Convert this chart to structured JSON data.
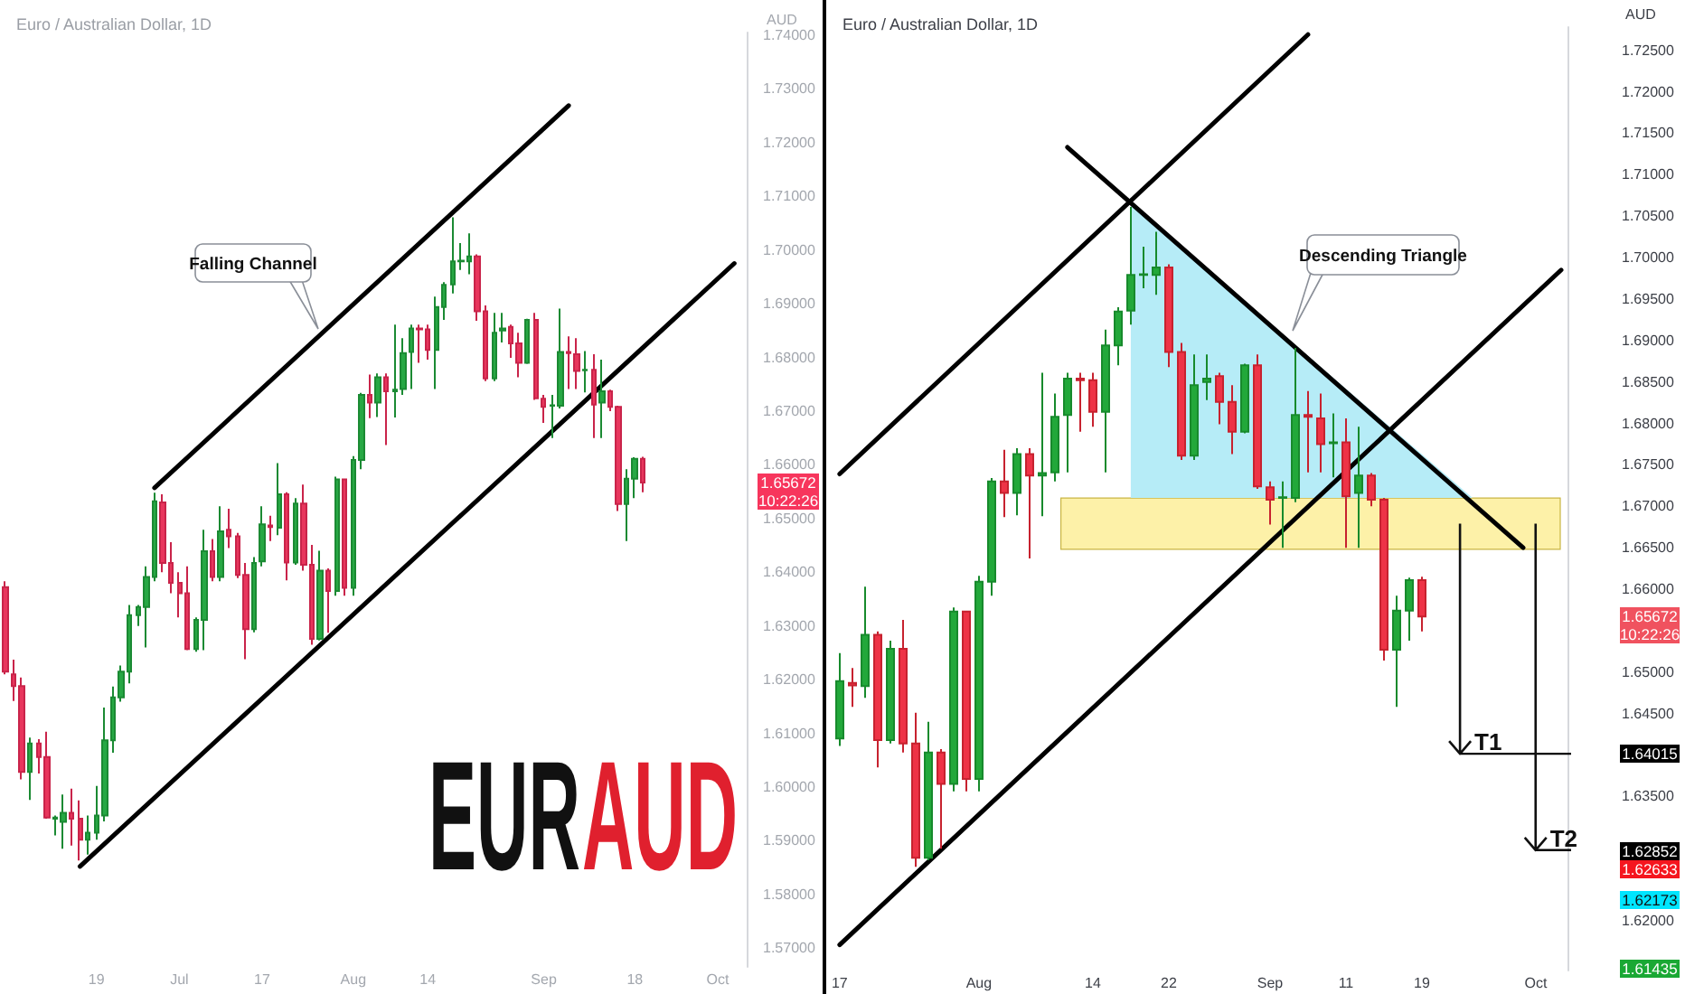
{
  "chart_data": [
    {
      "type": "candlestick",
      "title": "Euro / Australian Dollar, 1D",
      "ylabel": "AUD",
      "categories": [
        null,
        null,
        null,
        null,
        null,
        null,
        null,
        null,
        null,
        null,
        null,
        "19",
        null,
        null,
        null,
        null,
        null,
        null,
        null,
        null,
        null,
        "Jul",
        null,
        null,
        null,
        null,
        null,
        null,
        null,
        null,
        null,
        "17",
        null,
        null,
        null,
        null,
        null,
        null,
        null,
        null,
        null,
        null,
        "Aug",
        null,
        null,
        null,
        null,
        null,
        null,
        null,
        null,
        "14",
        null,
        null,
        null,
        null,
        null,
        null,
        null,
        null,
        null,
        null,
        null,
        null,
        null,
        "Sep",
        null,
        null,
        null,
        null,
        null,
        null,
        null,
        null,
        null,
        null,
        "18",
        null,
        null,
        null,
        null,
        null,
        null,
        null,
        null,
        null,
        "Oct",
        null,
        null,
        null
      ],
      "ohlc": [
        [
          1.6372,
          1.6383,
          1.621,
          1.6215
        ],
        [
          1.621,
          1.6237,
          1.616,
          1.6188
        ],
        [
          1.6188,
          1.6204,
          1.6014,
          1.6028
        ],
        [
          1.6028,
          1.6092,
          1.5976,
          1.6081
        ],
        [
          1.6081,
          1.6089,
          1.6025,
          1.6056
        ],
        [
          1.6056,
          1.6103,
          1.5941,
          1.5943
        ],
        [
          1.5941,
          1.5947,
          1.591,
          1.5943
        ],
        [
          1.5935,
          1.5986,
          1.5885,
          1.5952
        ],
        [
          1.5952,
          1.5997,
          1.5891,
          1.5941
        ],
        [
          1.5941,
          1.5975,
          1.5863,
          1.5902
        ],
        [
          1.5902,
          1.5947,
          1.5874,
          1.5915
        ],
        [
          1.5915,
          1.6002,
          1.5902,
          1.5947
        ],
        [
          1.5947,
          1.6148,
          1.5936,
          1.6087
        ],
        [
          1.6087,
          1.6187,
          1.6064,
          1.6167
        ],
        [
          1.6167,
          1.6226,
          1.6159,
          1.6215
        ],
        [
          1.6215,
          1.6339,
          1.6193,
          1.632
        ],
        [
          1.632,
          1.6339,
          1.63,
          1.6335
        ],
        [
          1.6335,
          1.6411,
          1.626,
          1.6391
        ],
        [
          1.6391,
          1.6548,
          1.6383,
          1.6532
        ],
        [
          1.653,
          1.6545,
          1.64,
          1.6417
        ],
        [
          1.6417,
          1.6456,
          1.6361,
          1.638
        ],
        [
          1.638,
          1.64,
          1.6316,
          1.6361
        ],
        [
          1.6361,
          1.6411,
          1.6255,
          1.6257
        ],
        [
          1.6257,
          1.6316,
          1.6252,
          1.6311
        ],
        [
          1.6311,
          1.6479,
          1.6255,
          1.6439
        ],
        [
          1.6439,
          1.6462,
          1.6383,
          1.6391
        ],
        [
          1.6391,
          1.6523,
          1.6383,
          1.6476
        ],
        [
          1.6479,
          1.6518,
          1.6445,
          1.6467
        ],
        [
          1.6467,
          1.6473,
          1.6389,
          1.6395
        ],
        [
          1.6395,
          1.6417,
          1.6238,
          1.6294
        ],
        [
          1.6294,
          1.6428,
          1.6288,
          1.6417
        ],
        [
          1.642,
          1.6523,
          1.6411,
          1.6489
        ],
        [
          1.6487,
          1.6505,
          1.6458,
          1.6484
        ],
        [
          1.6483,
          1.6603,
          1.6469,
          1.6545
        ],
        [
          1.6545,
          1.6549,
          1.6385,
          1.6418
        ],
        [
          1.6418,
          1.6538,
          1.6414,
          1.6528
        ],
        [
          1.6528,
          1.6563,
          1.6403,
          1.6414
        ],
        [
          1.6414,
          1.6451,
          1.6265,
          1.6276
        ],
        [
          1.6276,
          1.644,
          1.6273,
          1.6403
        ],
        [
          1.6403,
          1.6407,
          1.6287,
          1.6365
        ],
        [
          1.6365,
          1.6578,
          1.6356,
          1.6573
        ],
        [
          1.6573,
          1.6574,
          1.6356,
          1.6371
        ],
        [
          1.6371,
          1.6616,
          1.6356,
          1.6609
        ],
        [
          1.6609,
          1.6734,
          1.6592,
          1.673
        ],
        [
          1.673,
          1.6768,
          1.6687,
          1.6716
        ],
        [
          1.6716,
          1.677,
          1.6689,
          1.6763
        ],
        [
          1.6763,
          1.677,
          1.6637,
          1.6737
        ],
        [
          1.6737,
          1.6861,
          1.6688,
          1.674
        ],
        [
          1.6741,
          1.6836,
          1.673,
          1.6808
        ],
        [
          1.681,
          1.6861,
          1.6741,
          1.6854
        ],
        [
          1.6854,
          1.6861,
          1.679,
          1.6852
        ],
        [
          1.6852,
          1.6861,
          1.6796,
          1.6814
        ],
        [
          1.6814,
          1.6913,
          1.6741,
          1.6894
        ],
        [
          1.6894,
          1.694,
          1.687,
          1.6935
        ],
        [
          1.6936,
          1.7061,
          1.6919,
          1.6979
        ],
        [
          1.6979,
          1.7013,
          1.6963,
          1.698
        ],
        [
          1.6979,
          1.7031,
          1.6955,
          1.6988
        ],
        [
          1.6988,
          1.6992,
          1.6868,
          1.6886
        ],
        [
          1.6886,
          1.6897,
          1.6756,
          1.6761
        ],
        [
          1.6761,
          1.6883,
          1.6756,
          1.6846
        ],
        [
          1.685,
          1.6883,
          1.6828,
          1.6854
        ],
        [
          1.6857,
          1.6861,
          1.6799,
          1.6826
        ],
        [
          1.6826,
          1.6846,
          1.6763,
          1.679
        ],
        [
          1.679,
          1.6872,
          1.6788,
          1.687
        ],
        [
          1.687,
          1.6883,
          1.6721,
          1.6724
        ],
        [
          1.6723,
          1.673,
          1.6678,
          1.6708
        ],
        [
          1.671,
          1.673,
          1.665,
          1.6711
        ],
        [
          1.671,
          1.6891,
          1.6705,
          1.681
        ],
        [
          1.681,
          1.6839,
          1.6741,
          1.6808
        ],
        [
          1.6806,
          1.6836,
          1.6741,
          1.6775
        ],
        [
          1.6776,
          1.6812,
          1.6735,
          1.6777
        ],
        [
          1.6777,
          1.6806,
          1.665,
          1.6712
        ],
        [
          1.6716,
          1.6796,
          1.665,
          1.6737
        ],
        [
          1.6737,
          1.674,
          1.67,
          1.6708
        ],
        [
          1.6708,
          1.671,
          1.6514,
          1.6527
        ],
        [
          1.6527,
          1.6592,
          1.6458,
          1.6574
        ],
        [
          1.6574,
          1.6614,
          1.6538,
          1.6611
        ],
        [
          1.6611,
          1.6615,
          1.6549,
          1.6567
        ],
        null,
        null,
        null,
        null,
        null,
        null,
        null,
        null,
        null,
        null,
        null,
        null
      ],
      "series": [
        {
          "type": "line",
          "color": "#000000",
          "values": [
            null,
            null,
            null,
            null,
            null,
            null,
            null,
            null,
            null,
            null,
            null,
            null,
            null,
            null,
            null,
            null,
            null,
            null,
            1.6557,
            null,
            null,
            null,
            null,
            null,
            null,
            null,
            null,
            null,
            null,
            null,
            null,
            null,
            null,
            null,
            null,
            null,
            null,
            null,
            null,
            null,
            null,
            null,
            null,
            null,
            null,
            null,
            null,
            null,
            null,
            null,
            null,
            null,
            null,
            null,
            null,
            null,
            null,
            null,
            null,
            null,
            null,
            null,
            null,
            null,
            null,
            null,
            null,
            null,
            1.7269,
            null,
            null,
            null,
            null,
            null,
            null,
            null,
            null,
            null,
            null,
            null,
            null,
            null,
            null,
            null,
            null,
            null,
            null,
            null,
            null,
            null
          ]
        },
        {
          "type": "line",
          "color": "#000000",
          "values": [
            null,
            null,
            null,
            null,
            null,
            null,
            null,
            null,
            null,
            1.5852,
            null,
            null,
            null,
            null,
            null,
            null,
            null,
            null,
            null,
            null,
            null,
            null,
            null,
            null,
            null,
            null,
            null,
            null,
            null,
            null,
            null,
            null,
            null,
            null,
            null,
            null,
            null,
            null,
            null,
            null,
            null,
            null,
            null,
            null,
            null,
            null,
            null,
            null,
            null,
            null,
            null,
            null,
            null,
            null,
            null,
            null,
            null,
            null,
            null,
            null,
            null,
            null,
            null,
            null,
            null,
            null,
            null,
            null,
            null,
            null,
            null,
            null,
            null,
            null,
            null,
            null,
            null,
            null,
            null,
            null,
            null,
            null,
            null,
            null,
            null,
            null,
            null,
            null,
            1.6975,
            null
          ]
        }
      ],
      "ylim": [
        1.5665,
        1.7405
      ],
      "yticks": [
        {
          "value": 1.57,
          "label": "1.57000"
        },
        {
          "value": 1.58,
          "label": "1.58000"
        },
        {
          "value": 1.59,
          "label": "1.59000"
        },
        {
          "value": 1.6,
          "label": "1.60000"
        },
        {
          "value": 1.61,
          "label": "1.61000"
        },
        {
          "value": 1.62,
          "label": "1.62000"
        },
        {
          "value": 1.63,
          "label": "1.63000"
        },
        {
          "value": 1.64,
          "label": "1.64000"
        },
        {
          "value": 1.65,
          "label": "1.65000"
        },
        {
          "value": 1.66,
          "label": "1.66000"
        },
        {
          "value": 1.67,
          "label": "1.67000"
        },
        {
          "value": 1.68,
          "label": "1.68000"
        },
        {
          "value": 1.69,
          "label": "1.69000"
        },
        {
          "value": 1.7,
          "label": "1.70000"
        },
        {
          "value": 1.71,
          "label": "1.71000"
        },
        {
          "value": 1.72,
          "label": "1.72000"
        },
        {
          "value": 1.73,
          "label": "1.73000"
        },
        {
          "value": 1.74,
          "label": "1.74000"
        }
      ],
      "annotations": [
        "Falling Channel",
        "EUR",
        "AUD",
        "1.65672",
        "10:22:26"
      ]
    },
    {
      "type": "candlestick",
      "title": "Euro / Australian Dollar, 1D",
      "ylabel": "AUD",
      "categories": [
        "17",
        null,
        null,
        null,
        null,
        null,
        null,
        null,
        null,
        null,
        null,
        "Aug",
        null,
        null,
        null,
        null,
        null,
        null,
        null,
        null,
        "14",
        null,
        null,
        null,
        null,
        null,
        "22",
        null,
        null,
        null,
        null,
        null,
        null,
        null,
        "Sep",
        null,
        null,
        null,
        null,
        null,
        "11",
        null,
        null,
        null,
        null,
        null,
        "19",
        null,
        null,
        null,
        null,
        null,
        null,
        null,
        null,
        "Oct",
        null,
        null
      ],
      "ohlc": [
        [
          1.642,
          1.6523,
          1.6411,
          1.6489
        ],
        [
          1.6487,
          1.6505,
          1.6458,
          1.6484
        ],
        [
          1.6483,
          1.6603,
          1.6469,
          1.6545
        ],
        [
          1.6545,
          1.6549,
          1.6385,
          1.6418
        ],
        [
          1.6418,
          1.6538,
          1.6414,
          1.6528
        ],
        [
          1.6528,
          1.6563,
          1.6403,
          1.6414
        ],
        [
          1.6414,
          1.6451,
          1.6265,
          1.6276
        ],
        [
          1.6276,
          1.644,
          1.6273,
          1.6403
        ],
        [
          1.6403,
          1.6407,
          1.6287,
          1.6365
        ],
        [
          1.6365,
          1.6578,
          1.6356,
          1.6573
        ],
        [
          1.6573,
          1.6574,
          1.6356,
          1.6371
        ],
        [
          1.6371,
          1.6616,
          1.6356,
          1.6609
        ],
        [
          1.6609,
          1.6734,
          1.6592,
          1.673
        ],
        [
          1.673,
          1.6768,
          1.6687,
          1.6716
        ],
        [
          1.6716,
          1.677,
          1.6689,
          1.6763
        ],
        [
          1.6763,
          1.677,
          1.6637,
          1.6737
        ],
        [
          1.6737,
          1.6861,
          1.6688,
          1.674
        ],
        [
          1.6741,
          1.6836,
          1.673,
          1.6808
        ],
        [
          1.681,
          1.6861,
          1.6741,
          1.6854
        ],
        [
          1.6854,
          1.6861,
          1.679,
          1.6852
        ],
        [
          1.6852,
          1.6861,
          1.6796,
          1.6814
        ],
        [
          1.6814,
          1.6913,
          1.6741,
          1.6894
        ],
        [
          1.6894,
          1.694,
          1.687,
          1.6935
        ],
        [
          1.6936,
          1.7061,
          1.6919,
          1.6979
        ],
        [
          1.6979,
          1.7013,
          1.6963,
          1.698
        ],
        [
          1.6979,
          1.7031,
          1.6955,
          1.6988
        ],
        [
          1.6988,
          1.6992,
          1.6868,
          1.6886
        ],
        [
          1.6886,
          1.6897,
          1.6756,
          1.6761
        ],
        [
          1.6761,
          1.6883,
          1.6756,
          1.6846
        ],
        [
          1.685,
          1.6883,
          1.6828,
          1.6854
        ],
        [
          1.6857,
          1.6861,
          1.6799,
          1.6826
        ],
        [
          1.6826,
          1.6846,
          1.6763,
          1.679
        ],
        [
          1.679,
          1.6872,
          1.6788,
          1.687
        ],
        [
          1.687,
          1.6883,
          1.6721,
          1.6724
        ],
        [
          1.6723,
          1.673,
          1.6678,
          1.6708
        ],
        [
          1.671,
          1.673,
          1.665,
          1.6711
        ],
        [
          1.671,
          1.6891,
          1.6705,
          1.681
        ],
        [
          1.681,
          1.6839,
          1.6741,
          1.6808
        ],
        [
          1.6806,
          1.6836,
          1.6741,
          1.6775
        ],
        [
          1.6776,
          1.6812,
          1.6735,
          1.6777
        ],
        [
          1.6777,
          1.6806,
          1.665,
          1.6712
        ],
        [
          1.6716,
          1.6796,
          1.665,
          1.6737
        ],
        [
          1.6737,
          1.674,
          1.67,
          1.6708
        ],
        [
          1.6708,
          1.671,
          1.6514,
          1.6527
        ],
        [
          1.6527,
          1.6592,
          1.6458,
          1.6574
        ],
        [
          1.6574,
          1.6614,
          1.6538,
          1.6611
        ],
        [
          1.6611,
          1.6615,
          1.6549,
          1.6567
        ],
        null,
        null,
        null,
        null,
        null,
        null,
        null,
        null,
        null,
        null,
        null
      ],
      "series": [
        {
          "type": "area",
          "color": "#b6ecf7",
          "values": [
            null,
            null,
            null,
            null,
            null,
            null,
            null,
            null,
            null,
            null,
            null,
            null,
            null,
            null,
            null,
            null,
            null,
            null,
            null,
            null,
            null,
            null,
            null,
            1.7066,
            null,
            null,
            null,
            null,
            null,
            null,
            null,
            null,
            null,
            null,
            null,
            null,
            null,
            null,
            null,
            null,
            null,
            null,
            null,
            null,
            null,
            null,
            null,
            null,
            null,
            null,
            1.671,
            null,
            null,
            null,
            null,
            null,
            null,
            null
          ]
        },
        {
          "type": "line",
          "color": "#000000",
          "values": [
            1.6739,
            null,
            null,
            null,
            null,
            null,
            null,
            null,
            null,
            null,
            null,
            null,
            null,
            null,
            null,
            null,
            null,
            null,
            null,
            null,
            null,
            null,
            null,
            null,
            null,
            null,
            null,
            null,
            null,
            null,
            null,
            null,
            null,
            null,
            null,
            null,
            null,
            1.7269,
            null,
            null,
            null,
            null,
            null,
            null,
            null,
            null,
            null,
            null,
            null,
            null,
            null,
            null,
            null,
            null,
            null,
            null,
            null,
            null
          ]
        },
        {
          "type": "line",
          "color": "#000000",
          "values": [
            1.6171,
            null,
            null,
            null,
            null,
            null,
            null,
            null,
            null,
            null,
            null,
            null,
            null,
            null,
            null,
            null,
            null,
            null,
            null,
            null,
            null,
            null,
            null,
            null,
            null,
            null,
            null,
            null,
            null,
            null,
            null,
            null,
            null,
            null,
            null,
            null,
            null,
            null,
            null,
            null,
            null,
            null,
            null,
            null,
            null,
            null,
            null,
            null,
            null,
            null,
            null,
            null,
            null,
            null,
            null,
            null,
            null,
            1.6985
          ]
        },
        {
          "type": "line",
          "color": "#000000",
          "values": [
            null,
            null,
            null,
            null,
            null,
            null,
            null,
            null,
            null,
            null,
            null,
            null,
            null,
            null,
            null,
            null,
            null,
            null,
            1.7133,
            null,
            null,
            null,
            null,
            null,
            null,
            null,
            null,
            null,
            null,
            null,
            null,
            null,
            null,
            null,
            null,
            null,
            null,
            null,
            null,
            null,
            null,
            null,
            null,
            null,
            null,
            null,
            null,
            null,
            null,
            null,
            null,
            null,
            null,
            null,
            1.665,
            null,
            null,
            null
          ]
        }
      ],
      "ylim": [
        1.614,
        1.7278
      ],
      "yticks": [
        {
          "value": 1.62,
          "label": "1.62000"
        },
        {
          "value": 1.635,
          "label": "1.63500"
        },
        {
          "value": 1.645,
          "label": "1.64500"
        },
        {
          "value": 1.65,
          "label": "1.65000"
        },
        {
          "value": 1.66,
          "label": "1.66000"
        },
        {
          "value": 1.665,
          "label": "1.66500"
        },
        {
          "value": 1.67,
          "label": "1.67000"
        },
        {
          "value": 1.675,
          "label": "1.67500"
        },
        {
          "value": 1.68,
          "label": "1.68000"
        },
        {
          "value": 1.685,
          "label": "1.68500"
        },
        {
          "value": 1.69,
          "label": "1.69000"
        },
        {
          "value": 1.695,
          "label": "1.69500"
        },
        {
          "value": 1.7,
          "label": "1.70000"
        },
        {
          "value": 1.705,
          "label": "1.70500"
        },
        {
          "value": 1.71,
          "label": "1.71000"
        },
        {
          "value": 1.715,
          "label": "1.71500"
        },
        {
          "value": 1.72,
          "label": "1.72000"
        },
        {
          "value": 1.725,
          "label": "1.72500"
        }
      ],
      "bands": [
        {
          "axis": "y",
          "from": 1.6648,
          "to": 1.671,
          "color": "#fdf1a8"
        }
      ],
      "ref_lines": [
        {
          "axis": "y",
          "value": 1.64015,
          "label": "T1",
          "color": "#000000",
          "line_style": "solid"
        },
        {
          "axis": "y",
          "value": 1.62852,
          "label": "T2",
          "color": "#000000",
          "line_style": "solid"
        }
      ],
      "annotations": [
        "Descending Triangle",
        "1.65672",
        "10:22:26",
        "1.64015",
        "1.62852",
        "1.62633",
        "1.62173",
        "1.61435"
      ]
    }
  ]
}
